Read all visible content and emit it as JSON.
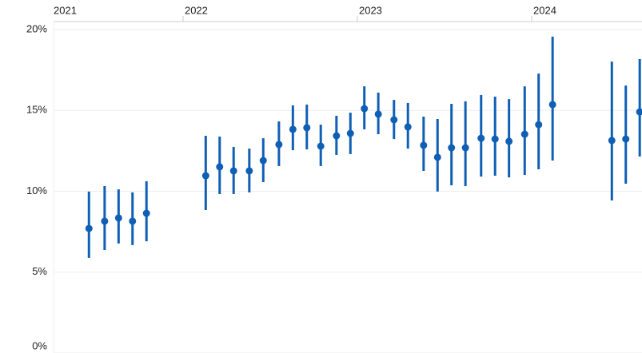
{
  "chart_data": {
    "type": "errorbar",
    "x": [
      2021.46,
      2021.55,
      2021.63,
      2021.71,
      2021.79,
      2022.13,
      2022.21,
      2022.29,
      2022.38,
      2022.46,
      2022.55,
      2022.63,
      2022.71,
      2022.79,
      2022.88,
      2022.96,
      2023.04,
      2023.12,
      2023.21,
      2023.29,
      2023.38,
      2023.46,
      2023.54,
      2023.62,
      2023.71,
      2023.79,
      2023.87,
      2023.96,
      2024.04,
      2024.12,
      2024.46,
      2024.54,
      2024.62
    ],
    "values": [
      7.7,
      8.15,
      8.35,
      8.15,
      8.64,
      10.96,
      11.51,
      11.26,
      11.26,
      11.9,
      12.89,
      13.83,
      13.93,
      12.79,
      13.43,
      13.58,
      15.11,
      14.77,
      14.42,
      13.98,
      12.84,
      12.1,
      12.69,
      12.69,
      13.28,
      13.23,
      13.09,
      13.53,
      14.12,
      15.36,
      13.14,
      13.23,
      14.91
    ],
    "lower": [
      5.88,
      6.37,
      6.77,
      6.67,
      6.91,
      8.84,
      9.83,
      9.83,
      9.93,
      10.57,
      11.56,
      12.54,
      12.59,
      11.56,
      12.25,
      12.3,
      13.83,
      13.53,
      13.23,
      12.64,
      11.26,
      9.98,
      10.37,
      10.32,
      10.91,
      10.96,
      10.86,
      11.01,
      11.36,
      11.9,
      9.43,
      10.47,
      12.15
    ],
    "upper": [
      9.98,
      10.32,
      10.12,
      9.93,
      10.62,
      13.43,
      13.38,
      12.74,
      12.64,
      13.28,
      14.32,
      15.31,
      15.36,
      14.12,
      14.67,
      14.86,
      16.49,
      16.1,
      15.65,
      15.46,
      14.62,
      14.47,
      15.41,
      15.56,
      15.95,
      15.85,
      15.7,
      16.49,
      17.28,
      19.56,
      18.02,
      16.54,
      18.17
    ],
    "color": "#0f5fb5",
    "xlim": [
      2021.257,
      2024.633
    ],
    "xticks": [
      2021,
      2022,
      2023,
      2024
    ],
    "ylim": [
      0,
      20
    ],
    "yticks": [
      {
        "value": 0,
        "label": "0%"
      },
      {
        "value": 5,
        "label": "5%"
      },
      {
        "value": 10,
        "label": "10%"
      },
      {
        "value": 15,
        "label": "15%"
      },
      {
        "value": 20,
        "label": "20%"
      }
    ],
    "grid": true
  }
}
